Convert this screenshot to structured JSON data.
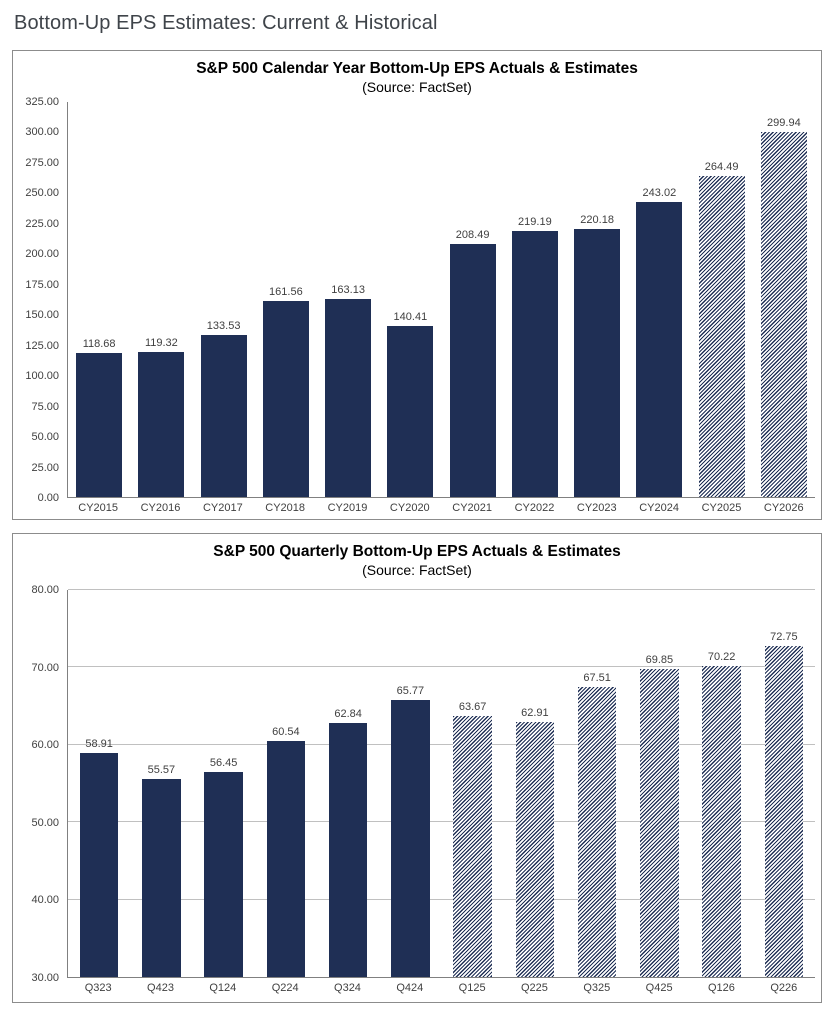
{
  "page": {
    "title": "Bottom-Up EPS Estimates: Current & Historical"
  },
  "colors": {
    "bar_navy": "#1f2f55",
    "panel_border": "#8c8c8c",
    "gridline": "#c0c0c0",
    "axis_line": "#808080",
    "label_text": "#404040",
    "page_title_text": "#3f444a",
    "chart_title_text": "#000000"
  },
  "chart_data": [
    {
      "type": "bar",
      "title": "S&P 500 Calendar Year Bottom-Up EPS Actuals & Estimates",
      "subtitle": "(Source: FactSet)",
      "categories": [
        "CY2015",
        "CY2016",
        "CY2017",
        "CY2018",
        "CY2019",
        "CY2020",
        "CY2021",
        "CY2022",
        "CY2023",
        "CY2024",
        "CY2025",
        "CY2026"
      ],
      "values": [
        118.68,
        119.32,
        133.53,
        161.56,
        163.13,
        140.41,
        208.49,
        219.19,
        220.18,
        243.02,
        264.49,
        299.94
      ],
      "estimate_from_index": 10,
      "xlabel": "",
      "ylabel": "",
      "ylim": [
        0,
        325
      ],
      "ytick_step": 25,
      "grid": false,
      "legend": "none",
      "bar_style_actual": "solid-navy",
      "bar_style_estimate": "diagonal-hatch"
    },
    {
      "type": "bar",
      "title": "S&P 500 Quarterly Bottom-Up EPS Actuals & Estimates",
      "subtitle": "(Source: FactSet)",
      "categories": [
        "Q323",
        "Q423",
        "Q124",
        "Q224",
        "Q324",
        "Q424",
        "Q125",
        "Q225",
        "Q325",
        "Q425",
        "Q126",
        "Q226"
      ],
      "values": [
        58.91,
        55.57,
        56.45,
        60.54,
        62.84,
        65.77,
        63.67,
        62.91,
        67.51,
        69.85,
        70.22,
        72.75
      ],
      "estimate_from_index": 6,
      "xlabel": "",
      "ylabel": "",
      "ylim": [
        30,
        80
      ],
      "ytick_step": 10,
      "grid": true,
      "legend": "none",
      "bar_style_actual": "solid-navy",
      "bar_style_estimate": "diagonal-hatch"
    }
  ]
}
